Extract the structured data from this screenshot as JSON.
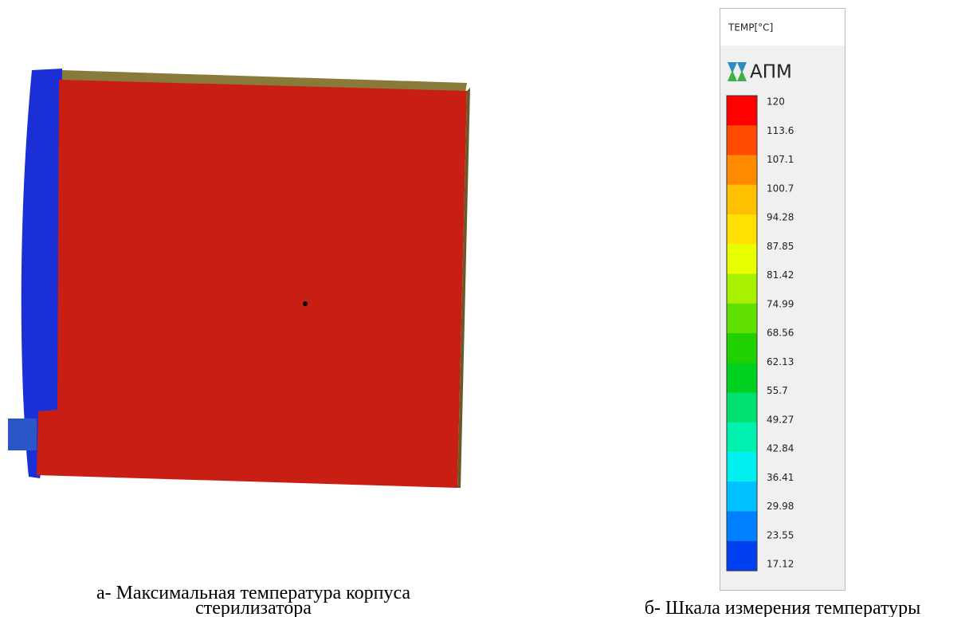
{
  "figure_a": {
    "caption_line1": "а- Максимальная температура корпуса",
    "caption_line2": "стерилизатора"
  },
  "figure_b": {
    "caption": "б- Шкала измерения температуры",
    "legend": {
      "title": "TEMP[°C]",
      "logo": "АПМ",
      "labels": [
        "120",
        "113.6",
        "107.1",
        "100.7",
        "94.28",
        "87.85",
        "81.42",
        "74.99",
        "68.56",
        "62.13",
        "55.7",
        "49.27",
        "42.84",
        "36.41",
        "29.98",
        "23.55",
        "17.12"
      ],
      "band_colors": [
        "#ff0000",
        "#ff4a00",
        "#ff8a00",
        "#ffc000",
        "#ffe000",
        "#e8ff00",
        "#a8f000",
        "#60e000",
        "#20d000",
        "#00d020",
        "#00e070",
        "#00f0b0",
        "#00f0f0",
        "#00c0ff",
        "#0080ff",
        "#0040f0"
      ]
    }
  }
}
